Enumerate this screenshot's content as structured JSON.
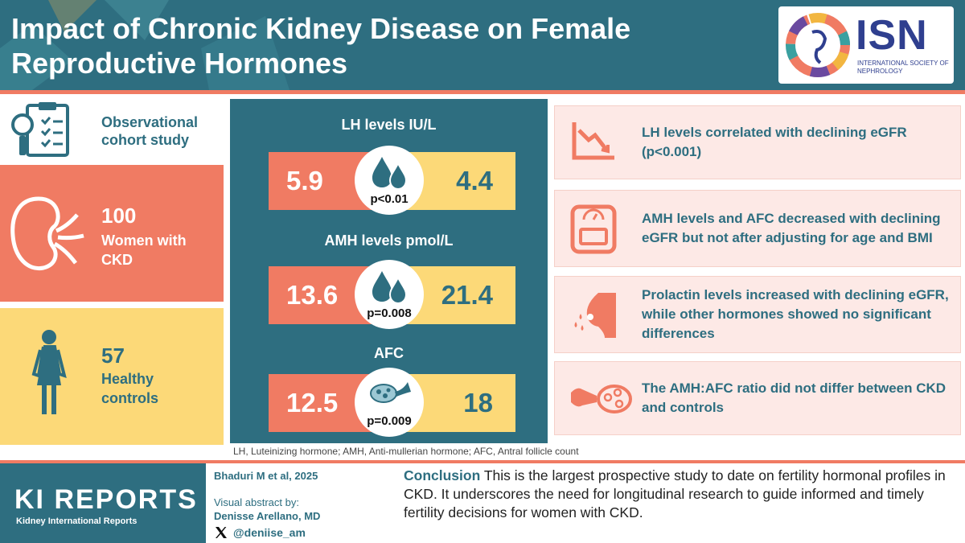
{
  "header": {
    "title": "Impact of Chronic Kidney Disease on Female Reproductive Hormones",
    "logo": {
      "acronym": "ISN",
      "org_name": "INTERNATIONAL SOCIETY OF NEPHROLOGY"
    }
  },
  "study": {
    "design": "Observational cohort study",
    "design_icon": "clipboard-magnifier-icon",
    "ckd": {
      "count": "100",
      "label": "Women with CKD",
      "icon": "kidney-icon"
    },
    "controls": {
      "count": "57",
      "label": "Healthy controls",
      "icon": "woman-icon"
    }
  },
  "metrics": [
    {
      "title": "LH levels IU/L",
      "ckd_value": "5.9",
      "control_value": "4.4",
      "p_value": "p<0.01",
      "icon": "drops-icon"
    },
    {
      "title": "AMH levels pmol/L",
      "ckd_value": "13.6",
      "control_value": "21.4",
      "p_value": "p=0.008",
      "icon": "drops-icon"
    },
    {
      "title": "AFC",
      "ckd_value": "12.5",
      "control_value": "18",
      "p_value": "p=0.009",
      "icon": "ovary-icon"
    }
  ],
  "footnote": "LH, Luteinizing hormone; AMH, Anti-mullerian hormone; AFC, Antral follicle count",
  "findings": [
    {
      "text": "LH levels correlated with declining eGFR (p<0.001)",
      "icon": "declining-chart-icon"
    },
    {
      "text": "AMH levels and AFC decreased with declining eGFR but not after adjusting for age and BMI",
      "icon": "weight-scale-icon"
    },
    {
      "text": "Prolactin levels increased with declining eGFR, while other hormones showed no significant differences",
      "icon": "breast-milk-icon"
    },
    {
      "text": "The AMH:AFC ratio did not differ between CKD and controls",
      "icon": "ovary-tube-icon"
    }
  ],
  "footer": {
    "journal_title": "KI REPORTS",
    "journal_subtitle": "Kidney International Reports",
    "citation": "Bhaduri M et al, 2025",
    "credit_label": "Visual abstract by:",
    "credit_name": "Denisse Arellano, MD",
    "credit_handle": "@deniise_am",
    "conclusion_label": "Conclusion",
    "conclusion_text": "This is the largest prospective study to date on fertility hormonal profiles in CKD. It underscores the need for longitudinal research to guide informed and timely fertility decisions for women with CKD."
  },
  "colors": {
    "teal": "#2e6e80",
    "coral": "#f07b63",
    "yellow": "#fcd978",
    "pink": "#fde9e6"
  }
}
